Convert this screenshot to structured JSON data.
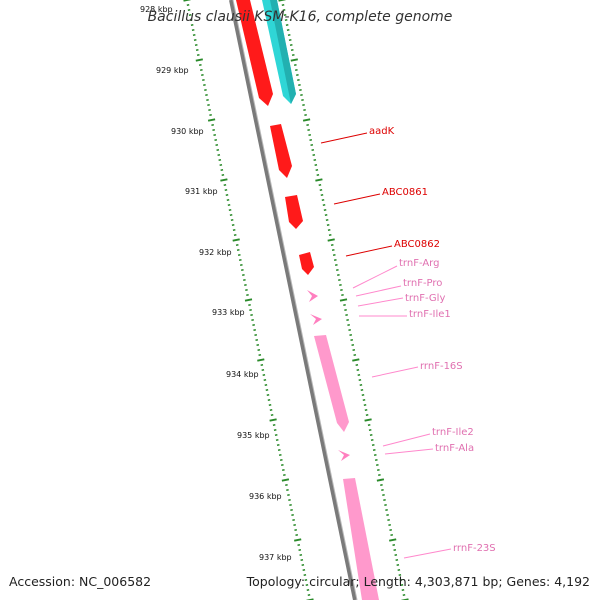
{
  "title": "Bacillus clausii KSM-K16, complete genome",
  "footer": {
    "accession": "Accession: NC_006582",
    "stats": "Topology: circular; Length: 4,303,871 bp; Genes: 4,192"
  },
  "colors": {
    "red_feature": "#ff1a1a",
    "cyan_feature": "#2fd6d6",
    "pink_feature": "#ff99cc",
    "tick_green": "#2a8a2a",
    "backbone": "#7a7a7a",
    "red_label": "#dd0000",
    "pink_label": "#e070b0"
  },
  "ticks": [
    {
      "label": "928 kbp"
    },
    {
      "label": "929 kbp"
    },
    {
      "label": "930 kbp"
    },
    {
      "label": "931 kbp"
    },
    {
      "label": "932 kbp"
    },
    {
      "label": "933 kbp"
    },
    {
      "label": "934 kbp"
    },
    {
      "label": "935 kbp"
    },
    {
      "label": "936 kbp"
    },
    {
      "label": "937 kbp"
    }
  ],
  "genes": [
    {
      "name": "aadK",
      "color": "red"
    },
    {
      "name": "ABC0861",
      "color": "red"
    },
    {
      "name": "ABC0862",
      "color": "red"
    },
    {
      "name": "trnF-Arg",
      "color": "pink"
    },
    {
      "name": "trnF-Pro",
      "color": "pink"
    },
    {
      "name": "trnF-Gly",
      "color": "pink"
    },
    {
      "name": "trnF-Ile1",
      "color": "pink"
    },
    {
      "name": "rrnF-16S",
      "color": "pink"
    },
    {
      "name": "trnF-Ile2",
      "color": "pink"
    },
    {
      "name": "trnF-Ala",
      "color": "pink"
    },
    {
      "name": "rrnF-23S",
      "color": "pink"
    }
  ]
}
